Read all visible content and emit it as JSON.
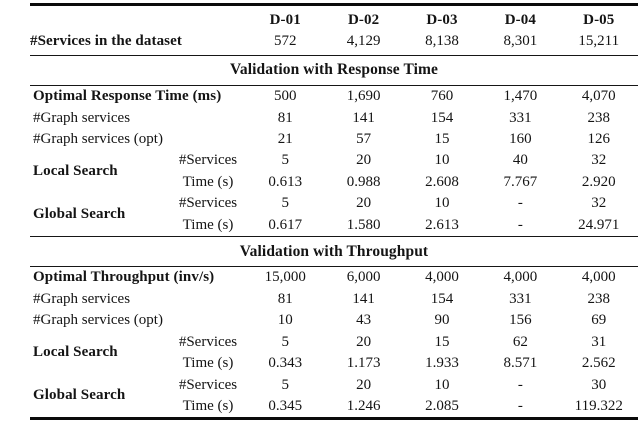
{
  "header": {
    "dataset_label": "#Services in the dataset",
    "columns": [
      "D-01",
      "D-02",
      "D-03",
      "D-04",
      "D-05"
    ],
    "dataset_values": [
      "572",
      "4,129",
      "8,138",
      "8,301",
      "15,211"
    ]
  },
  "response_time": {
    "title": "Validation with Response Time",
    "optimal_label": "Optimal Response Time (ms)",
    "optimal": [
      "500",
      "1,690",
      "760",
      "1,470",
      "4,070"
    ],
    "graph_label": "#Graph services",
    "graph": [
      "81",
      "141",
      "154",
      "331",
      "238"
    ],
    "graph_opt_label": "#Graph services (opt)",
    "graph_opt": [
      "21",
      "57",
      "15",
      "160",
      "126"
    ],
    "local_label": "Local Search",
    "global_label": "Global Search",
    "services_label": "#Services",
    "time_label": "Time (s)",
    "local_services": [
      "5",
      "20",
      "10",
      "40",
      "32"
    ],
    "local_time": [
      "0.613",
      "0.988",
      "2.608",
      "7.767",
      "2.920"
    ],
    "global_services": [
      "5",
      "20",
      "10",
      "-",
      "32"
    ],
    "global_time": [
      "0.617",
      "1.580",
      "2.613",
      "-",
      "24.971"
    ]
  },
  "throughput": {
    "title": "Validation with Throughput",
    "optimal_label": "Optimal Throughput (inv/s)",
    "optimal": [
      "15,000",
      "6,000",
      "4,000",
      "4,000",
      "4,000"
    ],
    "graph_label": "#Graph services",
    "graph": [
      "81",
      "141",
      "154",
      "331",
      "238"
    ],
    "graph_opt_label": "#Graph services (opt)",
    "graph_opt": [
      "10",
      "43",
      "90",
      "156",
      "69"
    ],
    "local_label": "Local Search",
    "global_label": "Global Search",
    "services_label": "#Services",
    "time_label": "Time (s)",
    "local_services": [
      "5",
      "20",
      "15",
      "62",
      "31"
    ],
    "local_time": [
      "0.343",
      "1.173",
      "1.933",
      "8.571",
      "2.562"
    ],
    "global_services": [
      "5",
      "20",
      "10",
      "-",
      "30"
    ],
    "global_time": [
      "0.345",
      "1.246",
      "2.085",
      "-",
      "119.322"
    ]
  }
}
